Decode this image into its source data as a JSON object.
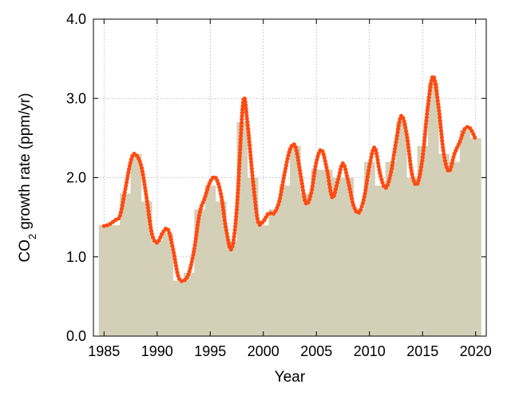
{
  "chart_data": {
    "type": "bar",
    "xlabel": "Year",
    "ylabel": {
      "main": "CO",
      "sub": "2",
      "rest": " growth rate (ppm/yr)"
    },
    "xlim": [
      1984,
      2021
    ],
    "ylim": [
      0,
      4
    ],
    "xticks": [
      1985,
      1990,
      1995,
      2000,
      2005,
      2010,
      2015,
      2020
    ],
    "yticks": [
      "0.0",
      "1.0",
      "2.0",
      "3.0",
      "4.0"
    ],
    "grid": true,
    "colors": {
      "bars": "#d4d0b8",
      "line": "#ff4a10",
      "grid": "#aaaaaa"
    },
    "series": [
      {
        "type": "bar",
        "x": [
          1985,
          1986,
          1987,
          1988,
          1989,
          1990,
          1991,
          1992,
          1993,
          1994,
          1995,
          1996,
          1997,
          1998,
          1999,
          2000,
          2001,
          2002,
          2003,
          2004,
          2005,
          2006,
          2007,
          2008,
          2009,
          2010,
          2011,
          2012,
          2013,
          2014,
          2015,
          2016,
          2017,
          2018,
          2019,
          2020
        ],
        "values": [
          1.4,
          1.4,
          1.8,
          2.3,
          1.7,
          1.2,
          1.3,
          0.7,
          0.8,
          1.6,
          1.9,
          1.7,
          1.2,
          2.7,
          2.0,
          1.4,
          1.6,
          1.9,
          2.4,
          1.8,
          2.1,
          2.1,
          2.0,
          2.0,
          1.6,
          2.2,
          1.9,
          2.2,
          2.7,
          2.0,
          2.4,
          3.2,
          2.3,
          2.2,
          2.6,
          2.5
        ]
      },
      {
        "type": "line",
        "x": [
          1985.0,
          1985.5,
          1986.0,
          1986.5,
          1987.0,
          1987.5,
          1987.9,
          1988.5,
          1989.0,
          1989.5,
          1990.0,
          1990.5,
          1991.0,
          1991.5,
          1992.0,
          1992.5,
          1993.0,
          1993.5,
          1994.0,
          1994.5,
          1995.0,
          1995.5,
          1996.0,
          1996.5,
          1997.0,
          1997.5,
          1998.1,
          1998.5,
          1999.0,
          1999.5,
          2000.0,
          2000.5,
          2001.0,
          2001.5,
          2002.0,
          2002.5,
          2003.0,
          2003.5,
          2004.0,
          2004.5,
          2005.0,
          2005.5,
          2006.0,
          2006.5,
          2007.0,
          2007.5,
          2008.0,
          2008.5,
          2009.0,
          2009.5,
          2010.0,
          2010.5,
          2011.0,
          2011.5,
          2012.0,
          2012.5,
          2013.0,
          2013.5,
          2014.0,
          2014.5,
          2015.0,
          2015.5,
          2016.0,
          2016.5,
          2017.0,
          2017.5,
          2018.0,
          2018.5,
          2019.0,
          2019.5,
          2020.0
        ],
        "values": [
          1.39,
          1.41,
          1.46,
          1.52,
          1.85,
          2.2,
          2.3,
          2.15,
          1.75,
          1.3,
          1.18,
          1.3,
          1.35,
          1.1,
          0.75,
          0.7,
          0.8,
          1.1,
          1.55,
          1.75,
          1.95,
          2.0,
          1.8,
          1.35,
          1.1,
          1.6,
          2.95,
          2.7,
          2.0,
          1.45,
          1.45,
          1.55,
          1.55,
          1.7,
          2.05,
          2.35,
          2.4,
          2.05,
          1.68,
          1.8,
          2.2,
          2.35,
          2.1,
          1.75,
          1.95,
          2.18,
          1.95,
          1.65,
          1.56,
          1.75,
          2.15,
          2.38,
          2.05,
          1.87,
          2.05,
          2.45,
          2.78,
          2.55,
          2.05,
          1.92,
          2.25,
          2.9,
          3.28,
          2.9,
          2.3,
          2.08,
          2.3,
          2.45,
          2.62,
          2.62,
          2.48
        ]
      }
    ]
  }
}
